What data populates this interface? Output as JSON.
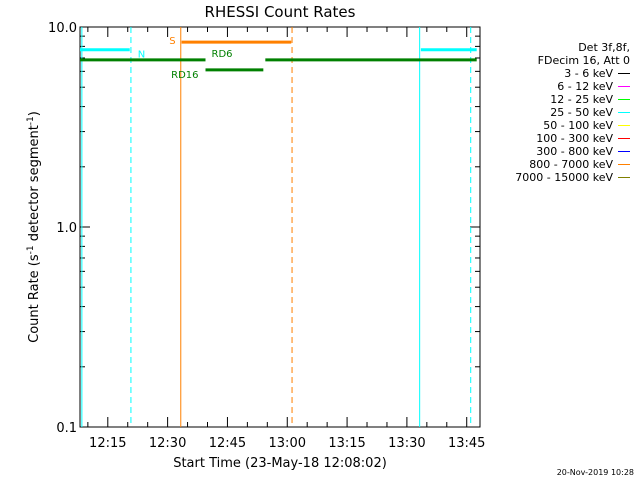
{
  "chart_data": {
    "type": "line",
    "title": "RHESSI Count Rates",
    "xlabel": "Start Time (23-May-18 12:08:02)",
    "ylabel_main": "Count Rate (s",
    "ylabel_sup1": "-1",
    "ylabel_mid": " detector segment",
    "ylabel_sup2": "-1",
    "ylabel_end": ")",
    "y_scale": "log",
    "ylim": [
      0.1,
      10.0
    ],
    "xlim": [
      "12:08:02",
      "13:48:20"
    ],
    "x_ticks": [
      "12:15",
      "12:30",
      "12:45",
      "13:00",
      "13:15",
      "13:30",
      "13:45"
    ],
    "x_tick_minutes": [
      0,
      15,
      30,
      45,
      60,
      75,
      90
    ],
    "y_ticks": [
      "0.1",
      "1.0",
      "10.0"
    ],
    "y_tick_values": [
      0.1,
      1.0,
      10.0
    ],
    "minutes_base": "12:15",
    "x_range_minutes": [
      -6.97,
      93.33
    ],
    "flag_bars": [
      {
        "label": "N",
        "color": "#00ffff",
        "level": 7.7,
        "segments": [
          [
            -7,
            5.5
          ],
          [
            78.5,
            92.5
          ]
        ]
      },
      {
        "label": "S",
        "color": "#ff8000",
        "level": 8.4,
        "segments": [
          [
            18.5,
            46.0
          ]
        ]
      },
      {
        "label": "RD6",
        "color": "#008000",
        "level": 6.85,
        "segments": [
          [
            -7,
            24.5
          ],
          [
            39.5,
            92.5
          ]
        ]
      },
      {
        "label": "RD16",
        "color": "#008000",
        "level": 6.1,
        "segments": [
          [
            24.5,
            39.0
          ]
        ]
      }
    ],
    "vlines": [
      {
        "x": -6.5,
        "color": "#00ffff",
        "style": "solid"
      },
      {
        "x": 5.8,
        "color": "#00ffff",
        "style": "dashed"
      },
      {
        "x": 18.3,
        "color": "#ff8000",
        "style": "solid"
      },
      {
        "x": 46.2,
        "color": "#ff8000",
        "style": "dashed"
      },
      {
        "x": 78.2,
        "color": "#00ffff",
        "style": "solid"
      },
      {
        "x": 91.0,
        "color": "#00ffff",
        "style": "dashed"
      }
    ]
  },
  "legend": {
    "header1": "Det 3f,8f,",
    "header2": "FDecim 16, Att 0",
    "items": [
      {
        "label": "3 - 6 keV",
        "color": "#000000"
      },
      {
        "label": "6 - 12 keV",
        "color": "#ff00ff"
      },
      {
        "label": "12 - 25 keV",
        "color": "#00ff00"
      },
      {
        "label": "25 - 50 keV",
        "color": "#00ffff"
      },
      {
        "label": "50 - 100 keV",
        "color": "#ffff00"
      },
      {
        "label": "100 - 300 keV",
        "color": "#ff0000"
      },
      {
        "label": "300 - 800 keV",
        "color": "#0000ff"
      },
      {
        "label": "800 - 7000 keV",
        "color": "#ff8000"
      },
      {
        "label": "7000 - 15000 keV",
        "color": "#808000"
      }
    ]
  },
  "timestamp": "20-Nov-2019 10:28"
}
